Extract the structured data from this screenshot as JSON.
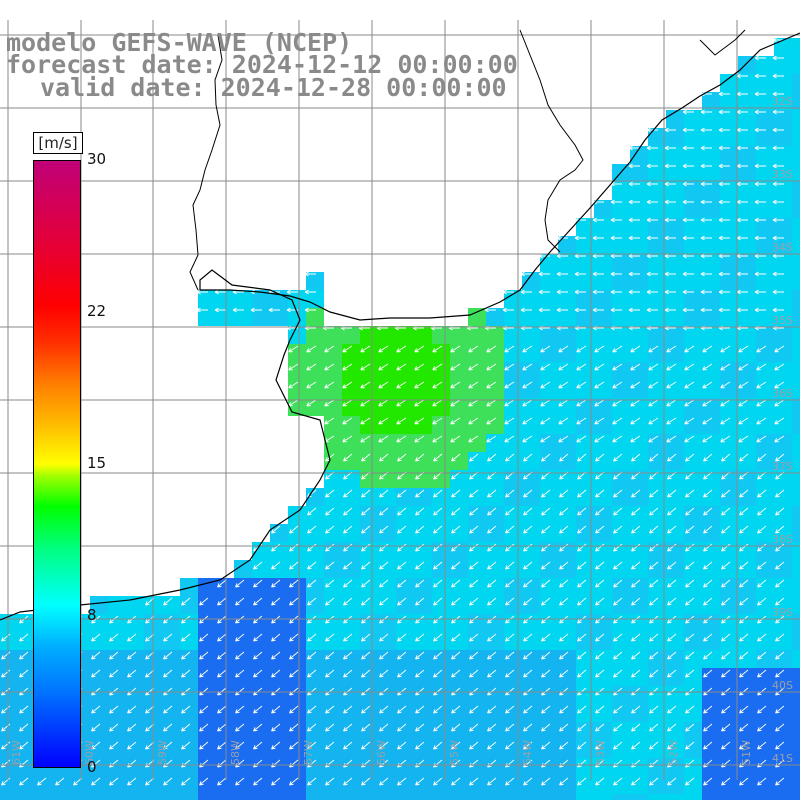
{
  "title": {
    "line1": "modelo GEFS-WAVE (NCEP)",
    "line2": "forecast date: 2024-12-12 00:00:00",
    "line3": "valid date: 2024-12-28 00:00:00"
  },
  "colorbar": {
    "unit": "[m/s]",
    "min": 0,
    "max": 30,
    "ticks": [
      "0",
      "8",
      "15",
      "22",
      "30"
    ],
    "colors": [
      "#0000ff",
      "#00b0ff",
      "#00ffff",
      "#00ff00",
      "#ffff00",
      "#ff8000",
      "#ff0000",
      "#c00078"
    ]
  },
  "map": {
    "variable": "wind speed",
    "field_colors": {
      "land": "#ffffff",
      "low": "#1a6cf0",
      "mid": "#00d6f0",
      "high": "#3ee05a",
      "peak": "#22e800",
      "grid": "#8a8a8a",
      "coast": "#000000",
      "arrow": "#ffffff"
    },
    "lat_labels": [
      "32S",
      "33S",
      "34S",
      "35S",
      "36S",
      "37S",
      "38S",
      "39S",
      "40S",
      "41S"
    ],
    "lon_labels": [
      "61W",
      "60W",
      "59W",
      "58W",
      "57W",
      "56W",
      "55W",
      "54W",
      "53W",
      "52W",
      "51W"
    ]
  }
}
